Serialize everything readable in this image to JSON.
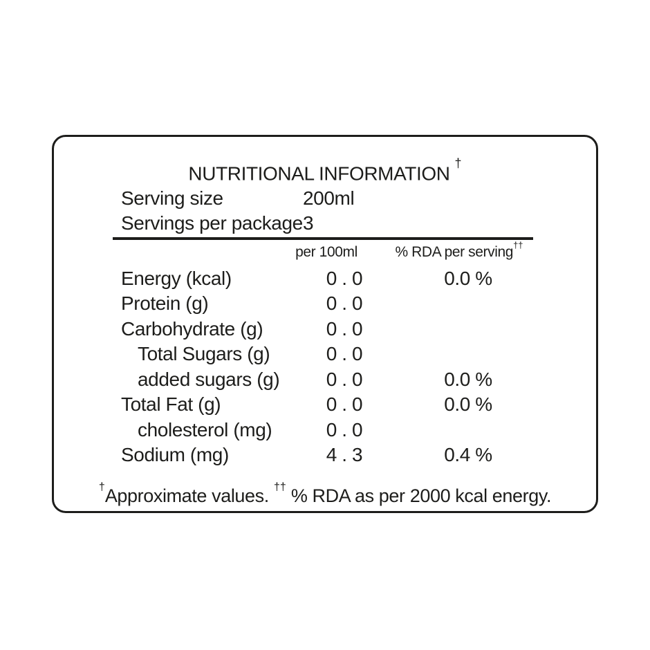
{
  "page": {
    "background_color": "#ffffff"
  },
  "label": {
    "border_color": "#1d1d1b",
    "text_color": "#1d1d1b",
    "title": "NUTRITIONAL INFORMATION",
    "title_note_symbol": "†",
    "serving_rows": [
      {
        "label": "Serving size",
        "value": "200ml"
      },
      {
        "label": "Servings per package",
        "value": "3"
      }
    ],
    "columns": {
      "per_100ml": "per 100ml",
      "rda": "% RDA per serving",
      "rda_note_symbol": "††"
    },
    "nutrients": [
      {
        "name": "Energy (kcal)",
        "indent": false,
        "per_100ml": "0 . 0",
        "rda_per_serving": "0.0 %"
      },
      {
        "name": "Protein (g)",
        "indent": false,
        "per_100ml": "0 . 0",
        "rda_per_serving": ""
      },
      {
        "name": "Carbohydrate (g)",
        "indent": false,
        "per_100ml": "0 . 0",
        "rda_per_serving": ""
      },
      {
        "name": "Total Sugars (g)",
        "indent": true,
        "per_100ml": "0 . 0",
        "rda_per_serving": ""
      },
      {
        "name": "added sugars (g)",
        "indent": true,
        "per_100ml": "0 . 0",
        "rda_per_serving": "0.0 %"
      },
      {
        "name": "Total Fat (g)",
        "indent": false,
        "per_100ml": "0 . 0",
        "rda_per_serving": "0.0 %"
      },
      {
        "name": "cholesterol (mg)",
        "indent": true,
        "per_100ml": "0 . 0",
        "rda_per_serving": ""
      },
      {
        "name": "Sodium (mg)",
        "indent": false,
        "per_100ml": "4 . 3",
        "rda_per_serving": "0.4 %"
      }
    ],
    "footnote": {
      "symbol1": "†",
      "text1": "Approximate values. ",
      "symbol2": "††",
      "text2": " % RDA as per 2000 kcal energy."
    }
  }
}
